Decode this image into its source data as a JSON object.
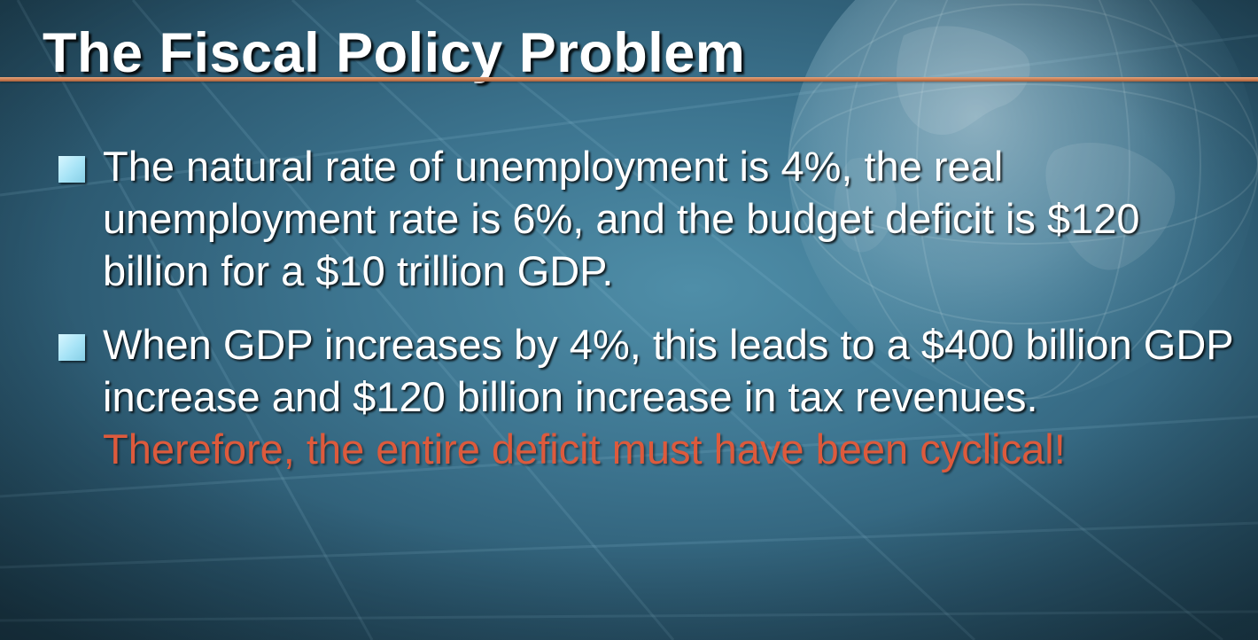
{
  "slide": {
    "title": "The Fiscal Policy Problem",
    "bullets": [
      {
        "text": "The natural rate of unemployment is 4%, the real unemployment rate is 6%, and the budget deficit is $120 billion for a $10 trillion GDP."
      },
      {
        "text": "When GDP increases by 4%, this leads to a $400 billion GDP increase and $120 billion increase in tax revenues. ",
        "highlight": "Therefore, the entire deficit must have been cyclical!"
      }
    ]
  },
  "colors": {
    "background": "#3d7590",
    "title_text": "#ffffff",
    "title_rule": "#c97a4f",
    "bullet_marker": "#a6e3f6",
    "body_text": "#ffffff",
    "highlight_text": "#dd5a3c"
  },
  "icons": {
    "bullet": "square-bullet-icon",
    "background_image": "globe-icon"
  }
}
